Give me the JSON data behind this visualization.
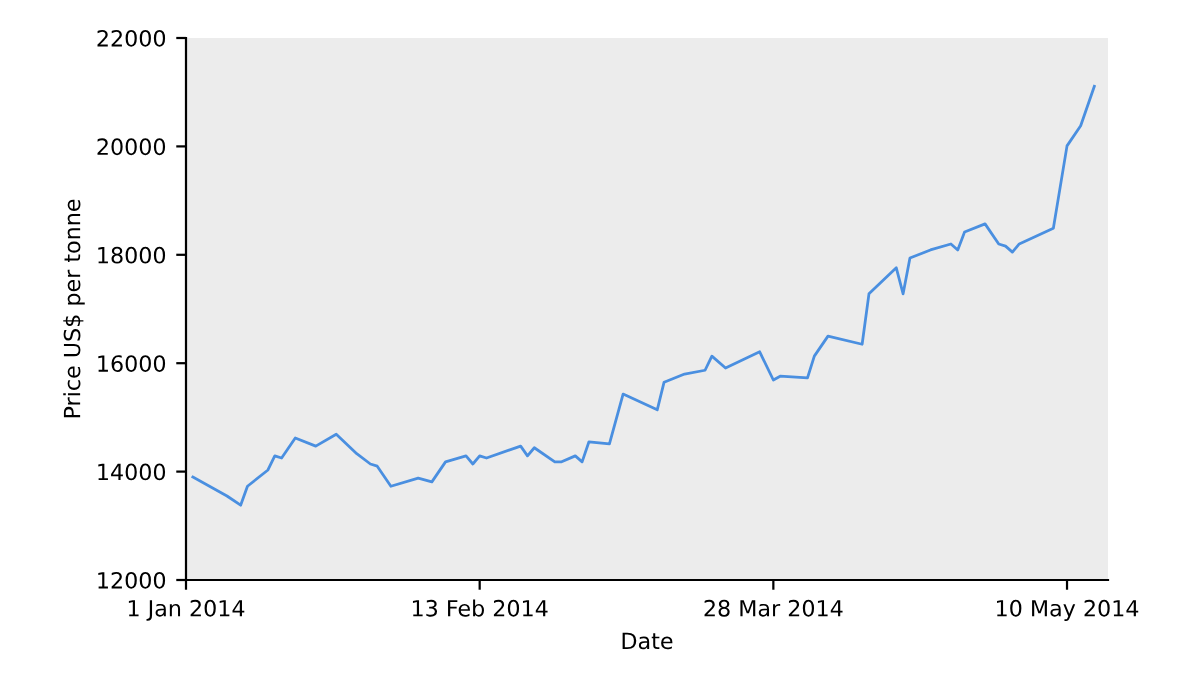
{
  "chart_data": {
    "type": "line",
    "xlabel": "Date",
    "ylabel": "Price US$ per tonne",
    "x": [
      "2014-01-02",
      "2014-01-07",
      "2014-01-09",
      "2014-01-10",
      "2014-01-13",
      "2014-01-14",
      "2014-01-15",
      "2014-01-17",
      "2014-01-20",
      "2014-01-23",
      "2014-01-26",
      "2014-01-28",
      "2014-01-29",
      "2014-01-31",
      "2014-02-04",
      "2014-02-06",
      "2014-02-08",
      "2014-02-11",
      "2014-02-12",
      "2014-02-13",
      "2014-02-14",
      "2014-02-19",
      "2014-02-20",
      "2014-02-21",
      "2014-02-24",
      "2014-02-25",
      "2014-02-27",
      "2014-02-28",
      "2014-03-01",
      "2014-03-04",
      "2014-03-06",
      "2014-03-11",
      "2014-03-12",
      "2014-03-15",
      "2014-03-18",
      "2014-03-19",
      "2014-03-21",
      "2014-03-26",
      "2014-03-28",
      "2014-03-29",
      "2014-04-02",
      "2014-04-03",
      "2014-04-05",
      "2014-04-10",
      "2014-04-11",
      "2014-04-15",
      "2014-04-16",
      "2014-04-17",
      "2014-04-20",
      "2014-04-23",
      "2014-04-24",
      "2014-04-25",
      "2014-04-28",
      "2014-04-30",
      "2014-05-01",
      "2014-05-02",
      "2014-05-03",
      "2014-05-08",
      "2014-05-10",
      "2014-05-12",
      "2014-05-14"
    ],
    "series": [
      {
        "color": "#4a8fe0",
        "values": [
          13900,
          13550,
          13380,
          13730,
          14030,
          14290,
          14250,
          14620,
          14470,
          14690,
          14330,
          14140,
          14100,
          13730,
          13880,
          13810,
          14180,
          14290,
          14140,
          14290,
          14250,
          14470,
          14290,
          14440,
          14180,
          14180,
          14290,
          14180,
          14550,
          14510,
          15430,
          15140,
          15650,
          15800,
          15870,
          16130,
          15910,
          16210,
          15690,
          15760,
          15730,
          16130,
          16500,
          16350,
          17280,
          17760,
          17280,
          17940,
          18090,
          18200,
          18090,
          18420,
          18570,
          18200,
          18160,
          18050,
          18200,
          18490,
          20010,
          20380,
          21110
        ]
      }
    ],
    "xlim": [
      "2014-01-01",
      "2014-05-16"
    ],
    "xticks": [
      {
        "value": "2014-01-01",
        "label": "1 Jan 2014"
      },
      {
        "value": "2014-02-13",
        "label": "13 Feb 2014"
      },
      {
        "value": "2014-03-28",
        "label": "28 Mar 2014"
      },
      {
        "value": "2014-05-10",
        "label": "10 May 2014"
      }
    ],
    "ylim": [
      12000,
      22000
    ],
    "yticks": [
      12000,
      14000,
      16000,
      18000,
      20000,
      22000
    ],
    "grid": false,
    "marker": "none",
    "line_style": "solid"
  }
}
